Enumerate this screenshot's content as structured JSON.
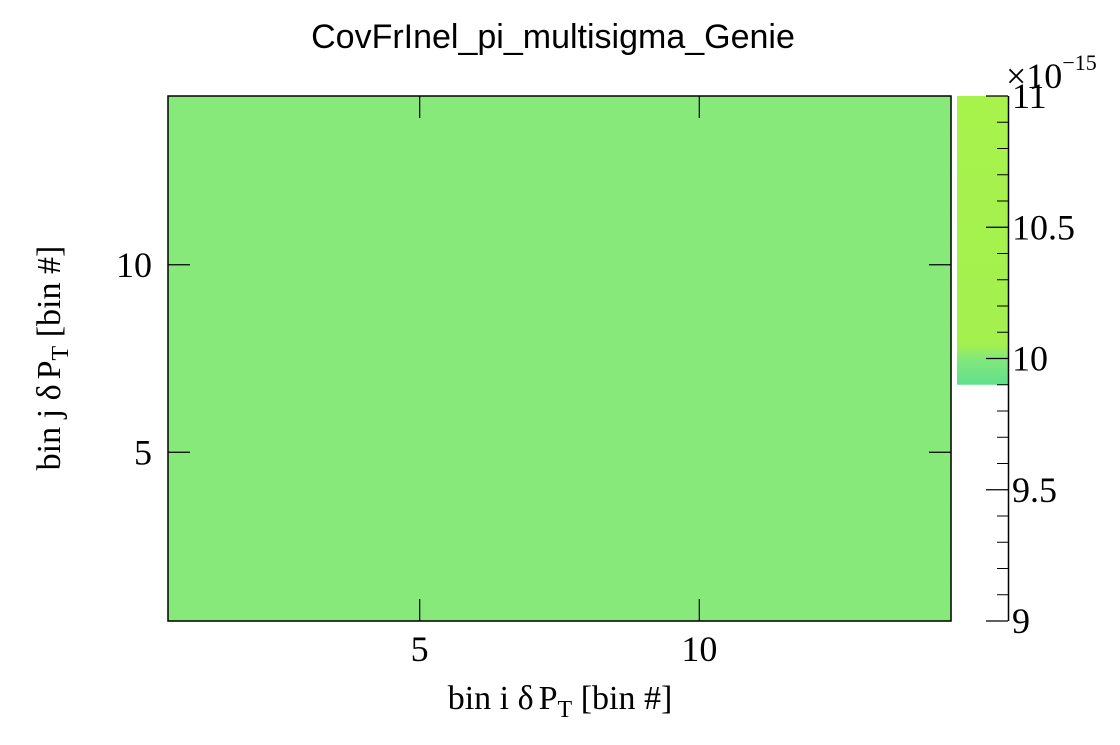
{
  "chart_data": {
    "type": "heatmap",
    "title": "CovFrInel_pi_multisigma_Genie",
    "xlabel": {
      "prefix": "bin i ",
      "delta": "δ",
      "var": "P",
      "sub": "T",
      "suffix": " [bin #]"
    },
    "ylabel": {
      "prefix": "bin j ",
      "delta": "δ",
      "var": "P",
      "sub": "T",
      "suffix": " [bin #]"
    },
    "x_range": [
      0.5,
      14.5
    ],
    "y_range": [
      0.5,
      14.5
    ],
    "x_ticks": [
      5,
      10
    ],
    "x_tick_labels": [
      "5",
      "10"
    ],
    "y_ticks": [
      5,
      10
    ],
    "y_tick_labels": [
      "5",
      "10"
    ],
    "z_range": [
      9e-15,
      1.1e-14
    ],
    "z_exponent_label": {
      "base": "×10",
      "exp": "−15"
    },
    "z_ticks": [
      9,
      9.5,
      10,
      10.5,
      11
    ],
    "z_tick_labels": [
      "9",
      "9.5",
      "10",
      "10.5",
      "11"
    ],
    "cell_value": 1e-14,
    "cell_color": "#86e97a",
    "palette_stops": [
      {
        "value": 9.9,
        "color": "#5fe08c"
      },
      {
        "value": 10.0,
        "color": "#84e87c"
      },
      {
        "value": 10.05,
        "color": "#a3f04e"
      },
      {
        "value": 11.0,
        "color": "#a8f24c"
      }
    ],
    "palette_visible_min": 9.9,
    "colors": {
      "frame": "#000000",
      "background": "#ffffff"
    }
  }
}
